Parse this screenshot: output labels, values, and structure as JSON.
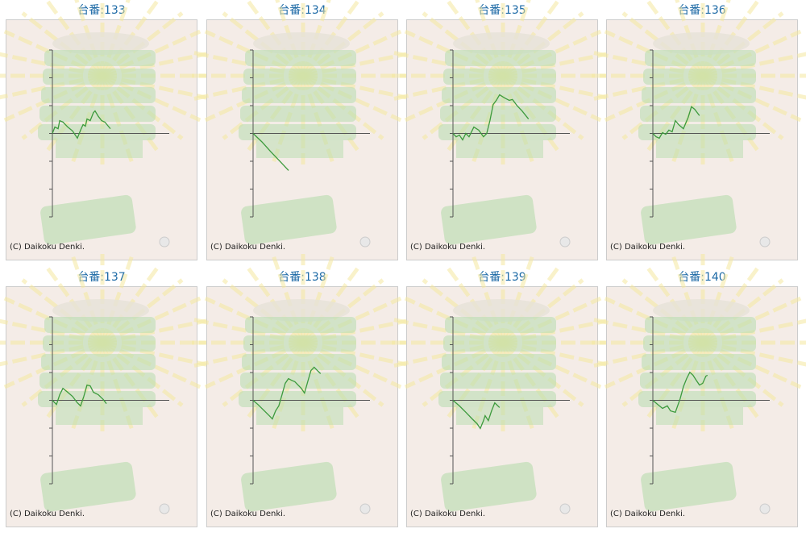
{
  "chart_data": [
    {
      "type": "line",
      "title": "台番:133",
      "credit": "(C) Daikoku Denki.",
      "color": "#3c9a3c",
      "x": [
        0,
        170,
        390,
        500,
        720,
        1050,
        1380,
        1710,
        1930,
        2100,
        2260,
        2370,
        2590,
        2810,
        2920,
        3150,
        3370,
        3590,
        3970
      ],
      "values": [
        0,
        230,
        170,
        460,
        410,
        230,
        90,
        -170,
        120,
        320,
        260,
        520,
        460,
        750,
        810,
        610,
        460,
        410,
        170
      ],
      "xlim": [
        0,
        8000
      ],
      "ylim": [
        -3000,
        3000
      ],
      "yticks": [
        -3000,
        -2000,
        -1000,
        0,
        1000,
        2000,
        3000
      ]
    },
    {
      "type": "line",
      "title": "台番:134",
      "credit": "(C) Daikoku Denki.",
      "color": "#3c9a3c",
      "x": [
        0,
        600,
        1200,
        1800,
        2430
      ],
      "values": [
        0,
        -300,
        -650,
        -980,
        -1330
      ],
      "xlim": [
        0,
        8000
      ],
      "ylim": [
        -3000,
        3000
      ],
      "yticks": [
        -3000,
        -2000,
        -1000,
        0,
        1000,
        2000,
        3000
      ]
    },
    {
      "type": "line",
      "title": "台番:135",
      "credit": "(C) Daikoku Denki.",
      "color": "#3c9a3c",
      "x": [
        0,
        220,
        440,
        660,
        880,
        1100,
        1430,
        1760,
        2090,
        2310,
        2530,
        2750,
        2970,
        3190,
        3520,
        3850,
        4070,
        4400,
        4730,
        5170
      ],
      "values": [
        0,
        -120,
        -60,
        -230,
        0,
        -120,
        230,
        120,
        -120,
        0,
        460,
        1040,
        1190,
        1390,
        1280,
        1190,
        1220,
        990,
        810,
        520
      ],
      "xlim": [
        0,
        8000
      ],
      "ylim": [
        -3000,
        3000
      ],
      "yticks": [
        -3000,
        -2000,
        -1000,
        0,
        1000,
        2000,
        3000
      ]
    },
    {
      "type": "line",
      "title": "台番:136",
      "credit": "(C) Daikoku Denki.",
      "color": "#3c9a3c",
      "x": [
        0,
        220,
        440,
        660,
        880,
        1100,
        1320,
        1540,
        1760,
        2090,
        2420,
        2640,
        2860,
        3190
      ],
      "values": [
        0,
        -120,
        -170,
        30,
        -30,
        120,
        60,
        460,
        320,
        170,
        580,
        960,
        870,
        640
      ],
      "xlim": [
        0,
        8000
      ],
      "ylim": [
        -3000,
        3000
      ],
      "yticks": [
        -3000,
        -2000,
        -1000,
        0,
        1000,
        2000,
        3000
      ]
    },
    {
      "type": "line",
      "title": "台番:137",
      "credit": "(C) Daikoku Denki.",
      "color": "#3c9a3c",
      "x": [
        0,
        280,
        500,
        720,
        1050,
        1380,
        1710,
        1930,
        2150,
        2370,
        2590,
        2810,
        3150,
        3480,
        3700
      ],
      "values": [
        0,
        -150,
        200,
        430,
        290,
        140,
        -90,
        -200,
        140,
        550,
        520,
        290,
        200,
        30,
        -120
      ],
      "xlim": [
        0,
        8000
      ],
      "ylim": [
        -3000,
        3000
      ],
      "yticks": [
        -3000,
        -2000,
        -1000,
        0,
        1000,
        2000,
        3000
      ]
    },
    {
      "type": "line",
      "title": "台番:138",
      "credit": "(C) Daikoku Denki.",
      "color": "#3c9a3c",
      "x": [
        0,
        330,
        660,
        1100,
        1320,
        1540,
        1760,
        1980,
        2200,
        2420,
        2640,
        2860,
        3080,
        3300,
        3520,
        3740,
        3960,
        4180,
        4400,
        4620
      ],
      "values": [
        0,
        -150,
        -320,
        -550,
        -670,
        -380,
        -200,
        200,
        610,
        780,
        720,
        670,
        550,
        430,
        260,
        670,
        1070,
        1190,
        1070,
        960
      ],
      "xlim": [
        0,
        8000
      ],
      "ylim": [
        -3000,
        3000
      ],
      "yticks": [
        -3000,
        -2000,
        -1000,
        0,
        1000,
        2000,
        3000
      ]
    },
    {
      "type": "line",
      "title": "台番:139",
      "credit": "(C) Daikoku Denki.",
      "color": "#3c9a3c",
      "x": [
        0,
        440,
        880,
        1320,
        1650,
        1870,
        2090,
        2200,
        2420,
        2640,
        2860,
        3190
      ],
      "values": [
        0,
        -200,
        -430,
        -670,
        -840,
        -1010,
        -730,
        -550,
        -730,
        -380,
        -90,
        -260
      ],
      "xlim": [
        0,
        8000
      ],
      "ylim": [
        -3000,
        3000
      ],
      "yticks": [
        -3000,
        -2000,
        -1000,
        0,
        1000,
        2000,
        3000
      ]
    },
    {
      "type": "line",
      "title": "台番:140",
      "credit": "(C) Daikoku Denki.",
      "color": "#3c9a3c",
      "x": [
        0,
        330,
        660,
        990,
        1210,
        1540,
        1870,
        2090,
        2310,
        2530,
        2750,
        2970,
        3190,
        3410,
        3630,
        3740
      ],
      "values": [
        0,
        -150,
        -290,
        -200,
        -380,
        -430,
        60,
        490,
        780,
        1010,
        900,
        720,
        550,
        610,
        870,
        900
      ],
      "xlim": [
        0,
        8000
      ],
      "ylim": [
        -3000,
        3000
      ],
      "yticks": [
        -3000,
        -2000,
        -1000,
        0,
        1000,
        2000,
        3000
      ]
    }
  ]
}
